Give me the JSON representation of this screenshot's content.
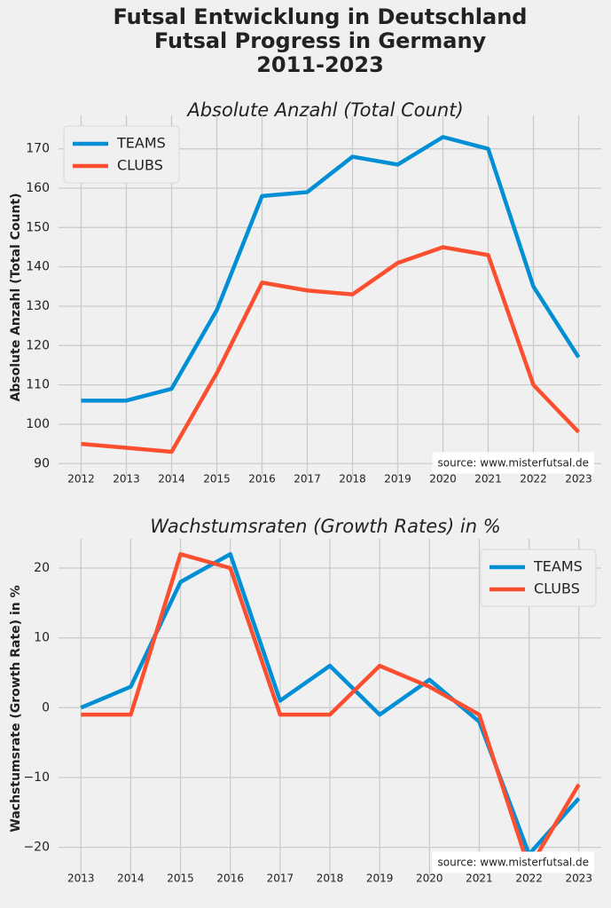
{
  "title_lines": [
    "Futsal Entwicklung in Deutschland",
    "Futsal Progress in Germany",
    "2011-2023"
  ],
  "chart_data": [
    {
      "type": "line",
      "title": "Absolute Anzahl (Total Count)",
      "y_label": "Absolute Anzahl (Total Count)",
      "annotation": "source: www.misterfutsal.de",
      "legend": "upper left",
      "grid": true,
      "x": [
        2012,
        2013,
        2014,
        2015,
        2016,
        2017,
        2018,
        2019,
        2020,
        2021,
        2022,
        2023
      ],
      "series": [
        {
          "name": "TEAMS",
          "color": "#008fd5",
          "values": [
            106,
            106,
            109,
            129,
            158,
            159,
            168,
            166,
            173,
            170,
            135,
            117
          ]
        },
        {
          "name": "CLUBS",
          "color": "#fc4f30",
          "values": [
            95,
            94,
            93,
            113,
            136,
            134,
            133,
            141,
            145,
            143,
            110,
            98
          ]
        }
      ],
      "xlim": [
        2011.5,
        2023.5
      ],
      "xticks": [
        2012,
        2013,
        2014,
        2015,
        2016,
        2017,
        2018,
        2019,
        2020,
        2021,
        2022,
        2023
      ],
      "ylim": [
        86,
        178.5
      ],
      "yticks": [
        90,
        100,
        110,
        120,
        130,
        140,
        150,
        160,
        170
      ]
    },
    {
      "type": "line",
      "title": "Wachstumsraten (Growth Rates) in %",
      "y_label": "Wachstumsrate (Growth Rate) in %",
      "annotation": "source: www.misterfutsal.de",
      "legend": "upper right",
      "grid": true,
      "x": [
        2013,
        2014,
        2015,
        2016,
        2017,
        2018,
        2019,
        2020,
        2021,
        2022,
        2023
      ],
      "series": [
        {
          "name": "TEAMS",
          "color": "#008fd5",
          "values": [
            0,
            3,
            18,
            22,
            1,
            6,
            -1,
            4,
            -2,
            -21,
            -13
          ]
        },
        {
          "name": "CLUBS",
          "color": "#fc4f30",
          "values": [
            -1,
            -1,
            22,
            20,
            -1,
            -1,
            6,
            3,
            -1,
            -23,
            -11
          ]
        }
      ],
      "xlim": [
        2012.55,
        2023.45
      ],
      "xticks": [
        2013,
        2014,
        2015,
        2016,
        2017,
        2018,
        2019,
        2020,
        2021,
        2022,
        2023
      ],
      "ylim": [
        -24.5,
        24.2
      ],
      "yticks": [
        {
          "value": -20,
          "label": "−20"
        },
        {
          "value": -10,
          "label": "−10"
        },
        0,
        10,
        20
      ]
    }
  ]
}
